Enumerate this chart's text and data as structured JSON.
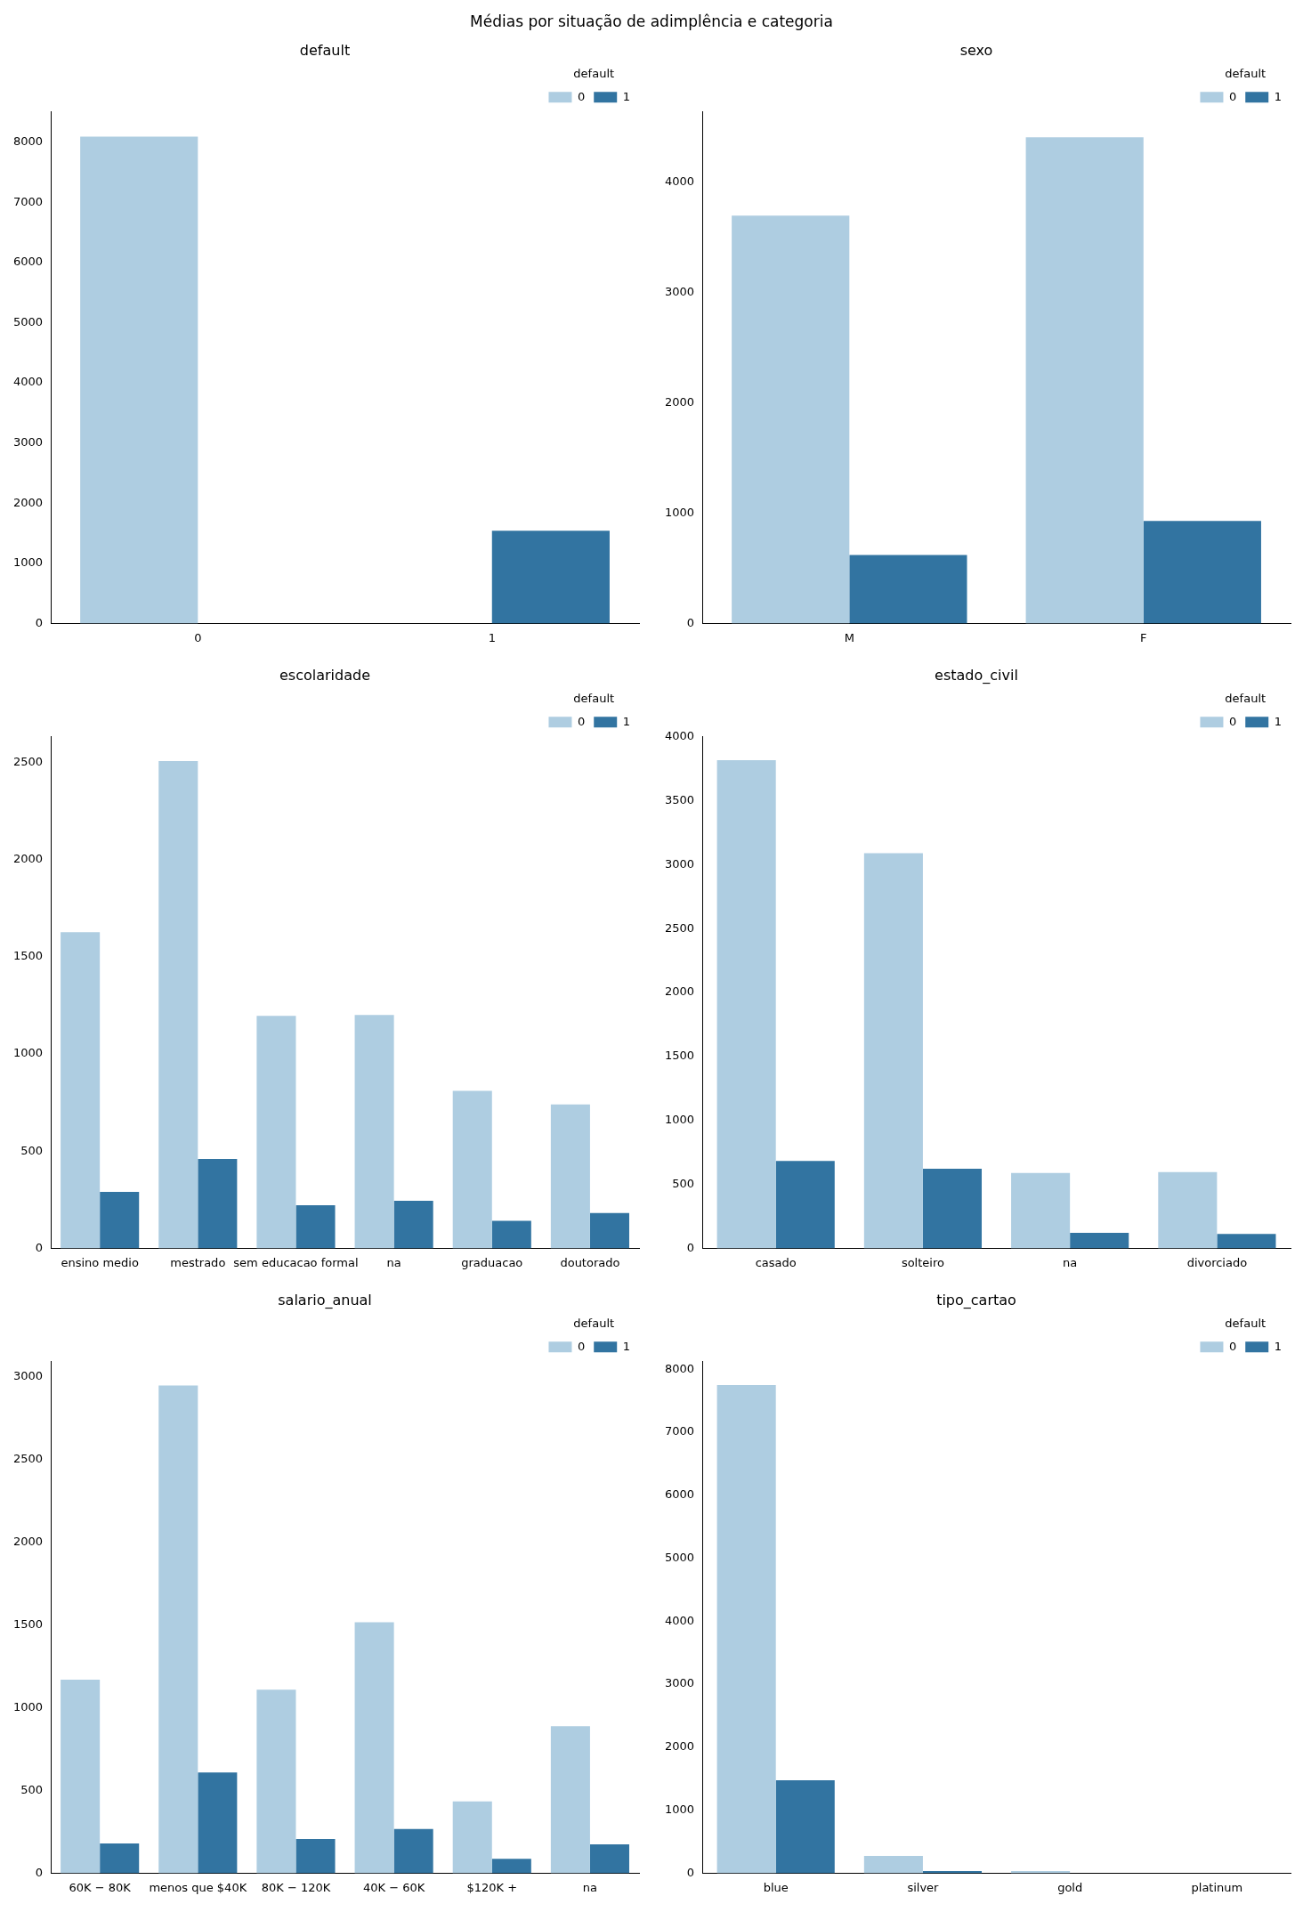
{
  "chart_data": [
    {
      "type": "bar",
      "title": "default",
      "annotations": [
        "Médias por situação de adimplência e categoria"
      ],
      "xlabel": null,
      "categories": [
        "0",
        "1"
      ],
      "legend_title": "default",
      "legend": "top right",
      "grid": false,
      "ylim": [
        0,
        8500
      ],
      "yticks": [
        0,
        1000,
        2000,
        3000,
        4000,
        5000,
        6000,
        7000,
        8000
      ],
      "series": [
        {
          "name": "0",
          "color": "#aecde1",
          "values": [
            8090,
            null
          ]
        },
        {
          "name": "1",
          "color": "#3274a1",
          "values": [
            null,
            1540
          ]
        }
      ]
    },
    {
      "type": "bar",
      "title": "sexo",
      "categories": [
        "M",
        "F"
      ],
      "legend_title": "default",
      "legend": "top right",
      "grid": false,
      "ylim": [
        0,
        4640
      ],
      "yticks": [
        0,
        1000,
        2000,
        3000,
        4000
      ],
      "series": [
        {
          "name": "0",
          "color": "#aecde1",
          "values": [
            3700,
            4410
          ]
        },
        {
          "name": "1",
          "color": "#3274a1",
          "values": [
            620,
            930
          ]
        }
      ]
    },
    {
      "type": "bar",
      "title": "escolaridade",
      "categories": [
        "ensino medio",
        "mestrado",
        "sem educacao formal",
        "na",
        "graduacao",
        "doutorado"
      ],
      "legend_title": "default",
      "legend": "top right",
      "grid": false,
      "ylim": [
        0,
        2630
      ],
      "yticks": [
        0,
        500,
        1000,
        1500,
        2000,
        2500
      ],
      "series": [
        {
          "name": "0",
          "color": "#aecde1",
          "values": [
            1625,
            2505,
            1195,
            1200,
            810,
            740
          ]
        },
        {
          "name": "1",
          "color": "#3274a1",
          "values": [
            290,
            460,
            222,
            244,
            142,
            182
          ]
        }
      ]
    },
    {
      "type": "bar",
      "title": "estado_civil",
      "categories": [
        "casado",
        "solteiro",
        "na",
        "divorciado"
      ],
      "legend_title": "default",
      "legend": "top right",
      "grid": false,
      "ylim": [
        0,
        4000
      ],
      "yticks": [
        0,
        500,
        1000,
        1500,
        2000,
        2500,
        3000,
        3500,
        4000
      ],
      "series": [
        {
          "name": "0",
          "color": "#aecde1",
          "values": [
            3818,
            3091,
            589,
            597
          ]
        },
        {
          "name": "1",
          "color": "#3274a1",
          "values": [
            684,
            623,
            121,
            113
          ]
        }
      ]
    },
    {
      "type": "bar",
      "title": "salario_anual",
      "categories": [
        "60K − 80K",
        "menos que $40K",
        "80K − 120K",
        "40K − 60K",
        "$120K +",
        "na"
      ],
      "legend_title": "default",
      "legend": "top right",
      "grid": false,
      "ylim": [
        0,
        3090
      ],
      "yticks": [
        0,
        500,
        1000,
        1500,
        2000,
        2500,
        3000
      ],
      "series": [
        {
          "name": "0",
          "color": "#aecde1",
          "values": [
            1169,
            2946,
            1109,
            1516,
            434,
            888
          ]
        },
        {
          "name": "1",
          "color": "#3274a1",
          "values": [
            180,
            608,
            207,
            267,
            87,
            174
          ]
        }
      ]
    },
    {
      "type": "bar",
      "title": "tipo_cartao",
      "categories": [
        "blue",
        "silver",
        "gold",
        "platinum"
      ],
      "legend_title": "default",
      "legend": "top right",
      "grid": false,
      "ylim": [
        0,
        8120
      ],
      "yticks": [
        0,
        1000,
        2000,
        3000,
        4000,
        5000,
        6000,
        7000,
        8000
      ],
      "series": [
        {
          "name": "0",
          "color": "#aecde1",
          "values": [
            7750,
            275,
            35,
            0
          ]
        },
        {
          "name": "1",
          "color": "#3274a1",
          "values": [
            1475,
            35,
            0,
            0
          ]
        }
      ]
    }
  ]
}
